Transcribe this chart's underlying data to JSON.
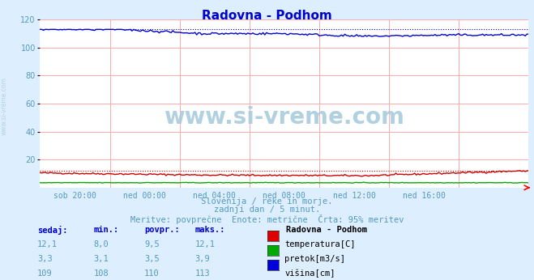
{
  "title": "Radovna - Podhom",
  "bg_color": "#ddeeff",
  "plot_bg_color": "#ffffff",
  "grid_color": "#ffaaaa",
  "xlabel_ticks": [
    "sob 20:00",
    "ned 00:00",
    "ned 04:00",
    "ned 08:00",
    "ned 12:00",
    "ned 16:00"
  ],
  "ylim": [
    0,
    120
  ],
  "yticks": [
    20,
    40,
    60,
    80,
    100,
    120
  ],
  "watermark_text": "www.si-vreme.com",
  "subtitle1": "Slovenija / reke in morje.",
  "subtitle2": "zadnji dan / 5 minut.",
  "subtitle3": "Meritve: povprečne  Enote: metrične  Črta: 95% meritev",
  "legend_title": "Radovna - Podhom",
  "legend_items": [
    {
      "label": "temperatura[C]",
      "color": "#dd0000"
    },
    {
      "label": "pretok[m3/s]",
      "color": "#00aa00"
    },
    {
      "label": "višina[cm]",
      "color": "#0000dd"
    }
  ],
  "table_headers": [
    "sedaj:",
    "min.:",
    "povpr.:",
    "maks.:"
  ],
  "table_data": [
    [
      "12,1",
      "8,0",
      "9,5",
      "12,1"
    ],
    [
      "3,3",
      "3,1",
      "3,5",
      "3,9"
    ],
    [
      "109",
      "108",
      "110",
      "113"
    ]
  ],
  "temp_color": "#cc0000",
  "pretok_color": "#00aa00",
  "visina_color": "#0000cc",
  "title_color": "#0000cc",
  "subtitle_color": "#5599bb",
  "watermark_color": "#aaccdd",
  "axis_label_color": "#5599bb",
  "table_num_color": "#5599bb",
  "table_header_color": "#0000cc",
  "legend_label_color": "#000000",
  "n_points": 288,
  "temp_max_dot": 12.1,
  "visina_max_dot": 113.0
}
